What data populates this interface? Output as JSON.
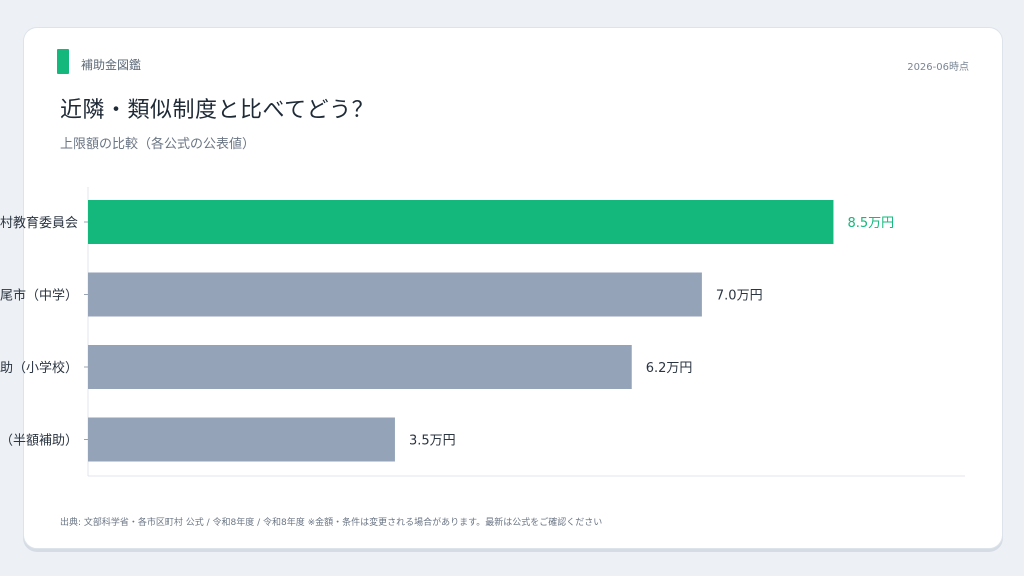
{
  "header": {
    "brand": "補助金図鑑",
    "date": "2026-06時点",
    "title": "近隣・類似制度と比べてどう？",
    "subtitle": "上限額の比較（各公式の公表値）"
  },
  "footer": {
    "source": "出典: 文部科学省・各市区町村 公式 / 令和8年度 / 令和8年度 ※金額・条件は変更される場合があります。最新は公式をご確認ください"
  },
  "colors": {
    "accent": "#14b87c",
    "bar_default": "#95a3b9",
    "axis": "#e1e6ec"
  },
  "chart_data": {
    "type": "bar",
    "orientation": "horizontal",
    "categories": [
      "村教育委員会",
      "尾市（中学）",
      "助（小学校）",
      "（半額補助）"
    ],
    "values": [
      8.5,
      7.0,
      6.2,
      3.5
    ],
    "value_labels": [
      "8.5万円",
      "7.0万円",
      "6.2万円",
      "3.5万円"
    ],
    "unit": "万円",
    "highlight_index": 0,
    "xlim": [
      0,
      10
    ],
    "grid": false,
    "legend": "none"
  }
}
